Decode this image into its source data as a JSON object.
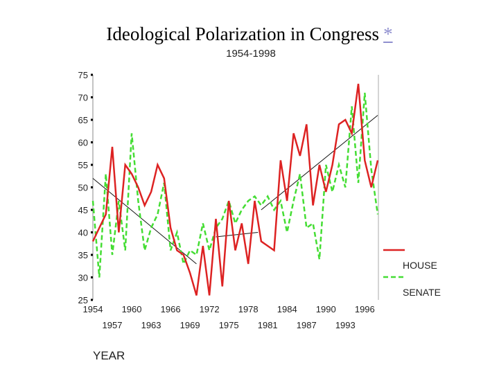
{
  "title": "Ideological Polarization in Congress",
  "title_link": "*",
  "chart_data": {
    "type": "line",
    "subtitle": "1954-1998",
    "xlabel": "YEAR",
    "ylabel": "",
    "xlim": [
      1954,
      1998
    ],
    "ylim": [
      25,
      75
    ],
    "yticks": [
      75,
      70,
      65,
      60,
      55,
      50,
      45,
      40,
      35,
      30,
      25
    ],
    "xticks_row1": [
      1954,
      1960,
      1966,
      1972,
      1978,
      1984,
      1990,
      1996
    ],
    "xticks_row2": [
      1957,
      1963,
      1969,
      1975,
      1981,
      1987,
      1993
    ],
    "x": [
      1954,
      1955,
      1956,
      1957,
      1958,
      1959,
      1960,
      1961,
      1962,
      1963,
      1964,
      1965,
      1966,
      1967,
      1968,
      1969,
      1970,
      1971,
      1972,
      1973,
      1974,
      1975,
      1976,
      1977,
      1978,
      1979,
      1980,
      1981,
      1982,
      1983,
      1984,
      1985,
      1986,
      1987,
      1988,
      1989,
      1990,
      1991,
      1992,
      1993,
      1994,
      1995,
      1996,
      1997,
      1998
    ],
    "series": [
      {
        "name": "HOUSE",
        "color": "#dd2222",
        "dash": "solid",
        "values": [
          38,
          41,
          44,
          59,
          40,
          55,
          53,
          50,
          46,
          49,
          55,
          52,
          41,
          36,
          35,
          31,
          26,
          37,
          26,
          43,
          28,
          47,
          36,
          42,
          33,
          47,
          38,
          37,
          36,
          56,
          47,
          62,
          57,
          64,
          46,
          55,
          49,
          55,
          64,
          65,
          62,
          73,
          56,
          50,
          56
        ]
      },
      {
        "name": "SENATE",
        "color": "#44dd33",
        "dash": "dashed",
        "values": [
          47,
          30,
          53,
          35,
          47,
          36,
          62,
          47,
          36,
          41,
          44,
          51,
          36,
          40,
          33,
          36,
          35,
          42,
          36,
          41,
          43,
          47,
          42,
          45,
          47,
          48,
          46,
          48,
          45,
          47,
          40,
          47,
          53,
          41,
          42,
          34,
          55,
          49,
          55,
          50,
          68,
          51,
          71,
          54,
          44
        ]
      }
    ],
    "trend_lines": [
      {
        "start": [
          1954,
          52
        ],
        "end": [
          1970,
          33
        ]
      },
      {
        "start": [
          1973,
          39
        ],
        "end": [
          1979.5,
          40
        ]
      },
      {
        "start": [
          1980,
          45
        ],
        "end": [
          1998,
          66
        ]
      }
    ],
    "legend_position": "bottom-right"
  }
}
